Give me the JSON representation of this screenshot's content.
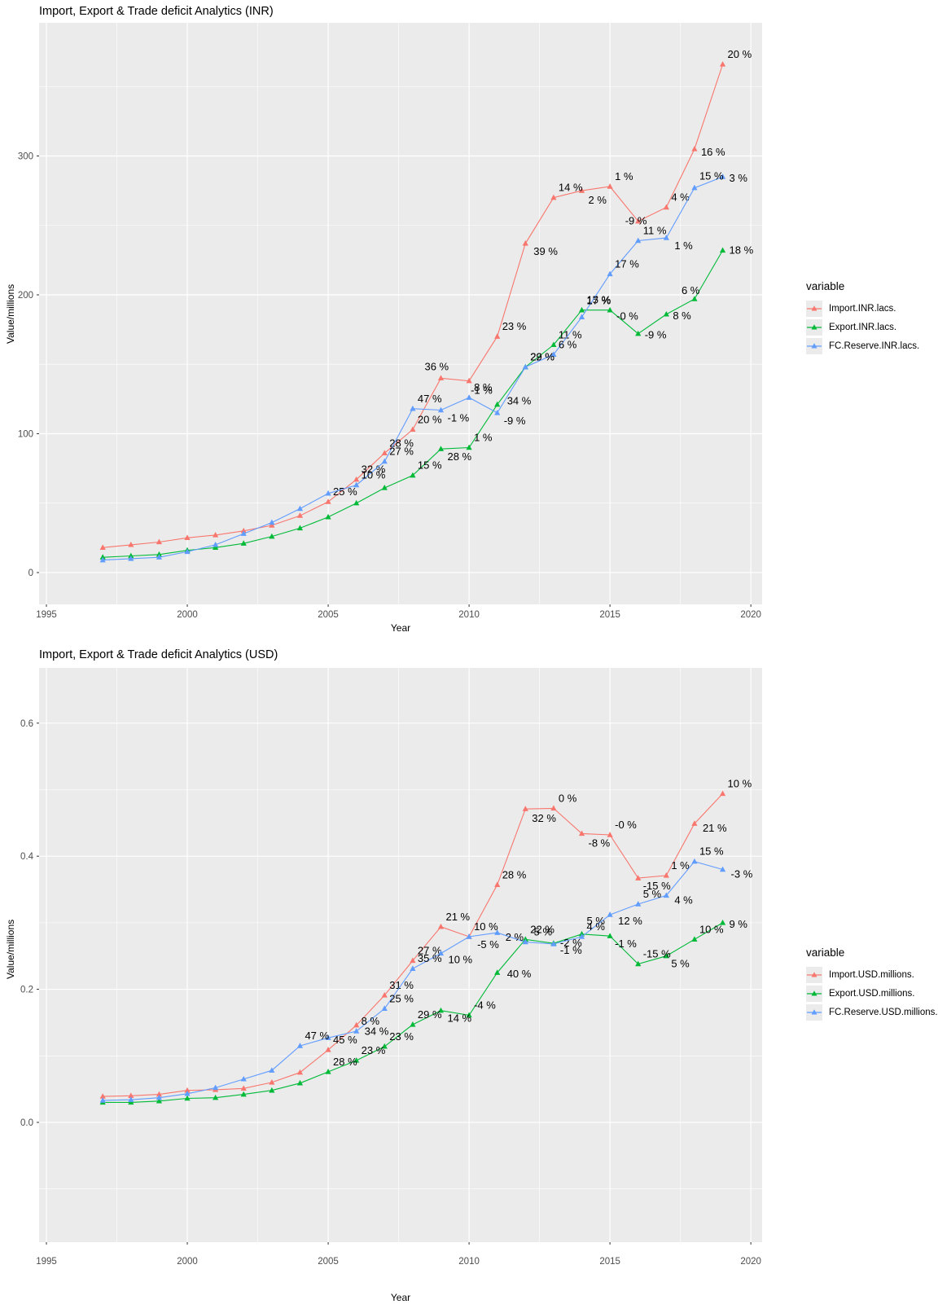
{
  "style": {
    "panel_bg": "#EBEBEB",
    "grid_major": "#FFFFFF",
    "grid_minor": "#FFFFFF",
    "axis_text": "#4D4D4D",
    "tick_mark": "#333333",
    "title_color": "#000000",
    "point_label_color": "#000000",
    "legend_key_bg": "#EBEBEB"
  },
  "chart_data": [
    {
      "type": "line",
      "title": "Import, Export & Trade deficit Analytics (INR)",
      "xlabel": "Year",
      "ylabel": "Value/millions",
      "legend_title": "variable",
      "legend_position": "right",
      "grid": true,
      "xlim": [
        1994.74,
        2020.4
      ],
      "ylim": [
        -22.9,
        395.9
      ],
      "x": [
        1997,
        1998,
        1999,
        2000,
        2001,
        2002,
        2003,
        2004,
        2005,
        2006,
        2007,
        2008,
        2009,
        2010,
        2011,
        2012,
        2013,
        2014,
        2015,
        2016,
        2017,
        2018,
        2019
      ],
      "xticks": {
        "values": [
          1995,
          2000,
          2005,
          2010,
          2015,
          2020
        ],
        "labels": [
          "1995",
          "2000",
          "2005",
          "2010",
          "2015",
          "2020"
        ],
        "minor": [
          1997.5,
          2002.5,
          2007.5,
          2012.5,
          2017.5
        ]
      },
      "yticks": {
        "values": [
          0,
          100,
          200,
          300
        ],
        "labels": [
          "0",
          "100",
          "200",
          "300"
        ],
        "minor": [
          50,
          150,
          250,
          350
        ]
      },
      "series": [
        {
          "name": "Import.INR.lacs.",
          "color": "#F8766D",
          "values": [
            18,
            20,
            22,
            25,
            27,
            30,
            34,
            41,
            51,
            67,
            86,
            103,
            140,
            138,
            170,
            237,
            270,
            275,
            278,
            253,
            263,
            305,
            366
          ],
          "labels": [
            null,
            null,
            null,
            null,
            null,
            null,
            null,
            null,
            {
              "t": "25 %"
            },
            {
              "t": "32 %"
            },
            {
              "t": "28 %"
            },
            {
              "t": "20 %"
            },
            {
              "t": "36 %",
              "dx": -20,
              "dy": -10
            },
            {
              "t": "-1 %",
              "dx": 2,
              "dy": 16
            },
            {
              "t": "23 %"
            },
            {
              "t": "39 %",
              "dx": 10,
              "dy": 14
            },
            {
              "t": "14 %"
            },
            {
              "t": "2 %",
              "dx": 8,
              "dy": 16
            },
            {
              "t": "1 %"
            },
            {
              "t": "-9 %",
              "dx": -16,
              "dy": 4
            },
            {
              "t": "4 %"
            },
            {
              "t": "16 %",
              "dx": 8,
              "dy": 8
            },
            {
              "t": "20 %"
            }
          ]
        },
        {
          "name": "Export.INR.lacs.",
          "color": "#00BA38",
          "values": [
            11,
            12,
            13,
            16,
            18,
            21,
            26,
            32,
            40,
            50,
            61,
            70,
            89,
            90,
            121,
            148,
            164,
            189,
            189,
            172,
            186,
            197,
            232
          ],
          "labels": [
            null,
            null,
            null,
            null,
            null,
            null,
            null,
            null,
            null,
            null,
            null,
            {
              "t": "15 %"
            },
            {
              "t": "28 %",
              "dx": 8,
              "dy": 14
            },
            {
              "t": "1 %"
            },
            {
              "t": "34 %",
              "dx": 12,
              "dy": 0
            },
            {
              "t": "22 %"
            },
            {
              "t": "11 %"
            },
            {
              "t": "15 %"
            },
            {
              "t": "-0 %",
              "dx": 8,
              "dy": 12
            },
            {
              "t": "-9 %",
              "dx": 8,
              "dy": 6
            },
            {
              "t": "8 %",
              "dx": 8,
              "dy": 6
            },
            {
              "t": "6 %",
              "dx": -16,
              "dy": -6
            },
            {
              "t": "18 %",
              "dx": 8,
              "dy": 4
            }
          ]
        },
        {
          "name": "FC.Reserve.INR.lacs.",
          "color": "#619CFF",
          "values": [
            9,
            10,
            11,
            15,
            20,
            28,
            36,
            46,
            57,
            63,
            80,
            118,
            117,
            126,
            115,
            148,
            157,
            184,
            215,
            239,
            241,
            277,
            285
          ],
          "labels": [
            null,
            null,
            null,
            null,
            null,
            null,
            null,
            null,
            null,
            {
              "t": "10 %"
            },
            {
              "t": "27 %"
            },
            {
              "t": "47 %"
            },
            {
              "t": "-1 %",
              "dx": 8,
              "dy": 14
            },
            {
              "t": "8 %"
            },
            {
              "t": "-9 %",
              "dx": 8,
              "dy": 14
            },
            {
              "t": "29 %"
            },
            {
              "t": "6 %"
            },
            {
              "t": "17 %",
              "dy": -16
            },
            {
              "t": "17 %"
            },
            {
              "t": "11 %"
            },
            {
              "t": "1 %",
              "dx": 10,
              "dy": 14
            },
            {
              "t": "15 %",
              "dy": -10
            },
            {
              "t": "3 %",
              "dx": 8,
              "dy": 6
            }
          ]
        }
      ]
    },
    {
      "type": "line",
      "title": "Import, Export & Trade deficit Analytics (USD)",
      "xlabel": "Year",
      "ylabel": "Value/millions",
      "legend_title": "variable",
      "legend_position": "right",
      "grid": true,
      "xlim": [
        1994.74,
        2020.4
      ],
      "ylim": [
        -0.18,
        0.683
      ],
      "x": [
        1997,
        1998,
        1999,
        2000,
        2001,
        2002,
        2003,
        2004,
        2005,
        2006,
        2007,
        2008,
        2009,
        2010,
        2011,
        2012,
        2013,
        2014,
        2015,
        2016,
        2017,
        2018,
        2019
      ],
      "xticks": {
        "values": [
          1995,
          2000,
          2005,
          2010,
          2015,
          2020
        ],
        "labels": [
          "1995",
          "2000",
          "2005",
          "2010",
          "2015",
          "2020"
        ],
        "minor": [
          1997.5,
          2002.5,
          2007.5,
          2012.5,
          2017.5
        ]
      },
      "yticks": {
        "values": [
          0,
          0.2,
          0.4,
          0.6
        ],
        "labels": [
          "0.0",
          "0.2",
          "0.4",
          "0.6"
        ],
        "minor": [
          -0.1,
          0.1,
          0.3,
          0.5
        ]
      },
      "series": [
        {
          "name": "Import.USD.millions.",
          "color": "#F8766D",
          "values": [
            0.039,
            0.04,
            0.042,
            0.048,
            0.049,
            0.051,
            0.06,
            0.075,
            0.109,
            0.146,
            0.191,
            0.243,
            0.294,
            0.279,
            0.357,
            0.471,
            0.472,
            0.434,
            0.432,
            0.367,
            0.371,
            0.449,
            0.494
          ],
          "labels": [
            null,
            null,
            null,
            null,
            null,
            null,
            null,
            null,
            {
              "t": "45 %"
            },
            {
              "t": "34 %",
              "dx": 10,
              "dy": 12
            },
            {
              "t": "31 %"
            },
            {
              "t": "27 %"
            },
            {
              "t": "21 %"
            },
            {
              "t": "-5 %",
              "dx": 10,
              "dy": 14
            },
            {
              "t": "28 %"
            },
            {
              "t": "32 %",
              "dx": 8,
              "dy": 16
            },
            {
              "t": "0 %"
            },
            {
              "t": "-8 %",
              "dx": 8,
              "dy": 16
            },
            {
              "t": "-0 %"
            },
            {
              "t": "-15 %",
              "dx": 6,
              "dy": 14
            },
            {
              "t": "1 %"
            },
            {
              "t": "21 %",
              "dx": 10,
              "dy": 10
            },
            {
              "t": "10 %"
            }
          ]
        },
        {
          "name": "Export.USD.millions.",
          "color": "#00BA38",
          "values": [
            0.03,
            0.03,
            0.032,
            0.036,
            0.037,
            0.042,
            0.048,
            0.059,
            0.076,
            0.093,
            0.114,
            0.147,
            0.168,
            0.161,
            0.225,
            0.275,
            0.269,
            0.283,
            0.28,
            0.238,
            0.25,
            0.275,
            0.3
          ],
          "labels": [
            null,
            null,
            null,
            null,
            null,
            null,
            null,
            null,
            {
              "t": "28 %"
            },
            {
              "t": "23 %"
            },
            {
              "t": "23 %"
            },
            {
              "t": "29 %"
            },
            {
              "t": "14 %",
              "dx": 8,
              "dy": 14
            },
            {
              "t": "-4 %"
            },
            {
              "t": "40 %",
              "dx": 12,
              "dy": 6
            },
            {
              "t": "22 %"
            },
            {
              "t": "-2 %",
              "dx": 8,
              "dy": 4
            },
            {
              "t": "5 %",
              "dy": -12
            },
            {
              "t": "-1 %",
              "dx": 6,
              "dy": 14
            },
            {
              "t": "-15 %"
            },
            {
              "t": "5 %",
              "dx": 6,
              "dy": 14
            },
            {
              "t": "10 %"
            },
            {
              "t": "9 %",
              "dx": 8,
              "dy": 6
            }
          ]
        },
        {
          "name": "FC.Reserve.USD.millions.",
          "color": "#619CFF",
          "values": [
            0.033,
            0.034,
            0.037,
            0.043,
            0.052,
            0.065,
            0.078,
            0.115,
            0.127,
            0.137,
            0.171,
            0.231,
            0.254,
            0.279,
            0.285,
            0.271,
            0.268,
            0.279,
            0.312,
            0.328,
            0.341,
            0.392,
            0.38
          ],
          "labels": [
            null,
            null,
            null,
            null,
            null,
            null,
            null,
            {
              "t": "47 %"
            },
            null,
            {
              "t": "8 %"
            },
            {
              "t": "25 %"
            },
            {
              "t": "35 %"
            },
            {
              "t": "10 %",
              "dx": 9,
              "dy": 12
            },
            {
              "t": "10 %"
            },
            {
              "t": "2 %",
              "dx": 10,
              "dy": 10
            },
            {
              "t": "-5 %"
            },
            {
              "t": "-1 %",
              "dx": 8,
              "dy": 12
            },
            {
              "t": "4 %"
            },
            {
              "t": "12 %",
              "dx": 10,
              "dy": 12
            },
            {
              "t": "5 %"
            },
            {
              "t": "4 %",
              "dx": 10,
              "dy": 10
            },
            {
              "t": "15 %"
            },
            {
              "t": "-3 %",
              "dx": 10,
              "dy": 10
            }
          ]
        }
      ]
    }
  ]
}
